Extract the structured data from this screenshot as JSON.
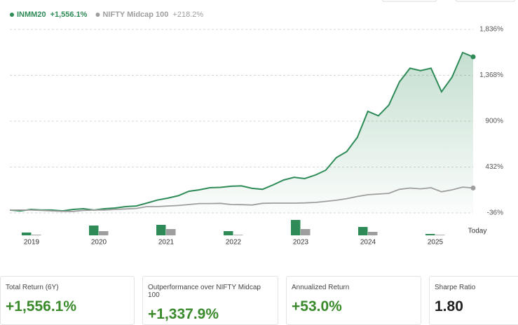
{
  "chart_data": [
    {
      "type": "line",
      "categories": [
        null,
        null,
        null,
        null,
        null,
        null,
        null,
        null,
        null,
        null,
        null,
        null,
        null,
        null,
        null,
        null,
        null,
        null,
        null,
        null,
        null,
        null,
        null,
        null,
        null,
        null,
        null,
        null,
        null,
        null,
        null,
        null,
        null,
        null,
        null,
        null,
        null,
        null,
        null,
        null,
        null,
        null,
        null,
        null,
        null
      ],
      "series": [
        {
          "name": "INMM20",
          "legend_value": "+1,556.1%",
          "color": "#2e8b57",
          "values": [
            -7,
            -15,
            0,
            -7,
            -7,
            -15,
            0,
            7,
            -7,
            7,
            14,
            28,
            35,
            64,
            95,
            115,
            140,
            185,
            200,
            221,
            225,
            236,
            240,
            215,
            205,
            250,
            300,
            328,
            314,
            350,
            400,
            528,
            590,
            735,
            1000,
            955,
            1065,
            1300,
            1440,
            1415,
            1440,
            1200,
            1350,
            1600,
            1556.1
          ]
        },
        {
          "name": "NIFTY Midcap 100",
          "legend_value": "+218.2%",
          "color": "#9e9e9e",
          "values": [
            -7,
            -7,
            -7,
            -10,
            -15,
            -20,
            -20,
            -10,
            -7,
            -7,
            0,
            5,
            10,
            28,
            28,
            35,
            40,
            50,
            60,
            60,
            62,
            50,
            48,
            45,
            62,
            64,
            64,
            64,
            66,
            71,
            82,
            93,
            110,
            132,
            150,
            157,
            164,
            205,
            218,
            210,
            221,
            180,
            200,
            228,
            218.2
          ]
        }
      ],
      "ylim": [
        -36,
        1836
      ],
      "yticks": [
        {
          "value": -36,
          "label": "-36%"
        },
        {
          "value": 432,
          "label": "432%"
        },
        {
          "value": 900,
          "label": "900%"
        },
        {
          "value": 1368,
          "label": "1,368%"
        },
        {
          "value": 1836,
          "label": "1,836%"
        }
      ],
      "grid": true,
      "end_label": "Today"
    },
    {
      "type": "bar",
      "categories": [
        "2019",
        "2020",
        "2021",
        "2022",
        "2023",
        "2024",
        "2025"
      ],
      "series": [
        {
          "color": "#2e8b57",
          "values": [
            20,
            70,
            75,
            30,
            110,
            60,
            10
          ]
        },
        {
          "color": "#9e9e9e",
          "values": [
            5,
            30,
            45,
            4,
            45,
            25,
            4
          ]
        }
      ]
    }
  ],
  "stats": [
    {
      "label": "Total Return (6Y)",
      "value": "+1,556.1%"
    },
    {
      "label": "Outperformance over NIFTY Midcap 100",
      "value": "+1,337.9%"
    },
    {
      "label": "Annualized Return",
      "value": "+53.0%"
    },
    {
      "label": "Sharpe Ratio",
      "value": "1.80"
    }
  ]
}
